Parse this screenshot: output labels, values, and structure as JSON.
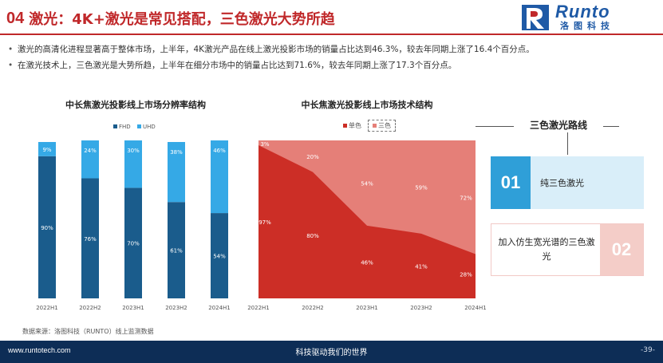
{
  "header": {
    "num": "04",
    "title": "激光：4K+激光是常见搭配，三色激光大势所趋"
  },
  "logo": {
    "en": "Runto",
    "cn": "洛图科技",
    "brand_color": "#1f5aa6"
  },
  "bullets": [
    "激光的高清化进程显著高于整体市场，上半年，4K激光产品在线上激光投影市场的销量占比达到46.3%，较去年同期上涨了16.4个百分点。",
    "在激光技术上，三色激光是大势所趋，上半年在细分市场中的销量占比达到71.6%，较去年同期上涨了17.3个百分点。"
  ],
  "chart1_title": "中长焦激光投影线上市场分辨率结构",
  "chart2_title": "中长焦激光投影线上市场技术结构",
  "chart_data": [
    {
      "type": "bar",
      "stacked": true,
      "title": "中长焦激光投影线上市场分辨率结构",
      "categories": [
        "2022H1",
        "2022H2",
        "2023H1",
        "2023H2",
        "2024H1"
      ],
      "series": [
        {
          "name": "FHD",
          "values": [
            90,
            76,
            70,
            61,
            54
          ],
          "labels": [
            "90%",
            "76%",
            "70%",
            "61%",
            "54%"
          ],
          "color": "#1a5c8c"
        },
        {
          "name": "UHD",
          "values": [
            9,
            24,
            30,
            38,
            46
          ],
          "labels": [
            "9%",
            "24%",
            "30%",
            "38%",
            "46%"
          ],
          "color": "#35a9e6"
        }
      ],
      "ylim": [
        0,
        100
      ],
      "legend": "top",
      "grid": false
    },
    {
      "type": "area",
      "stacked": true,
      "title": "中长焦激光投影线上市场技术结构",
      "categories": [
        "2022H1",
        "2022H2",
        "2023H1",
        "2023H2",
        "2024H1"
      ],
      "series": [
        {
          "name": "单色",
          "values": [
            97,
            80,
            46,
            41,
            28
          ],
          "labels": [
            "97%",
            "80%",
            "46%",
            "41%",
            "28%"
          ],
          "color": "#cc2e26"
        },
        {
          "name": "三色",
          "values": [
            3,
            20,
            54,
            59,
            72
          ],
          "labels": [
            "3%",
            "20%",
            "54%",
            "59%",
            "72%"
          ],
          "color": "#e57f78"
        }
      ],
      "ylim": [
        0,
        100
      ],
      "legend": "top",
      "grid": false
    }
  ],
  "route": {
    "title": "三色激光路线",
    "items": [
      {
        "num": "01",
        "label": "纯三色激光"
      },
      {
        "num": "02",
        "label": "加入仿生宽光谱的三色激光"
      }
    ]
  },
  "source": "数据来源：洛图科技（RUNTO）线上监测数据",
  "footer": {
    "url": "www.runtotech.com",
    "slogan": "科技驱动我们的世界",
    "page": "-39-"
  },
  "colors": {
    "accent": "#c0282a",
    "footer_bg": "#0d2d56"
  }
}
